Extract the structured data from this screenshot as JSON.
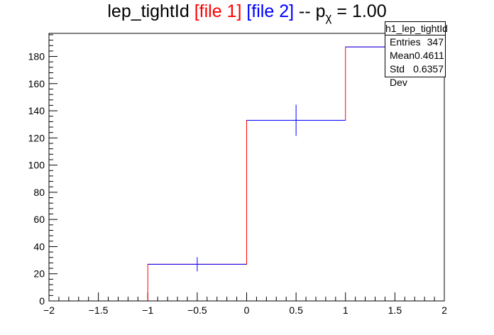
{
  "title": {
    "text": "lep_tightId",
    "file1": "[file 1]",
    "file2": "[file 2]",
    "sep": "-- p",
    "chi": "χ",
    "pvalue": "= 1.00"
  },
  "stats": {
    "name": "h1_lep_tightId",
    "entries_label": "Entries",
    "entries_value": "347",
    "mean_label": "Mean",
    "mean_value": "0.4611",
    "std_label": "Std Dev",
    "std_value": "0.6357"
  },
  "colors": {
    "file1": "#ff0000",
    "file2": "#0000ff",
    "axis": "#000000"
  },
  "chart_data": {
    "type": "histogram",
    "title": "lep_tightId",
    "xlim": [
      -2,
      2
    ],
    "ylim": [
      0,
      197
    ],
    "x_ticks": [
      -2,
      -1.5,
      -1,
      -0.5,
      0,
      0.5,
      1,
      1.5,
      2
    ],
    "x_tick_labels": [
      "−2",
      "−1.5",
      "−1",
      "−0.5",
      "0",
      "0.5",
      "1",
      "1.5",
      "2"
    ],
    "y_ticks": [
      0,
      20,
      40,
      60,
      80,
      100,
      120,
      140,
      160,
      180
    ],
    "y_tick_labels": [
      "0",
      "20",
      "40",
      "60",
      "80",
      "100",
      "120",
      "140",
      "160",
      "180"
    ],
    "bin_edges": [
      -1,
      0,
      1,
      2
    ],
    "series": [
      {
        "name": "[file 1]",
        "style": "step",
        "color": "#ff0000",
        "values": [
          27,
          133,
          187
        ]
      },
      {
        "name": "[file 2]",
        "style": "errorbar",
        "color": "#0000ff",
        "x": [
          -0.5,
          0.5,
          1.5
        ],
        "values": [
          27,
          133,
          187
        ],
        "errors": [
          5.2,
          11.5,
          13.7
        ]
      }
    ]
  }
}
